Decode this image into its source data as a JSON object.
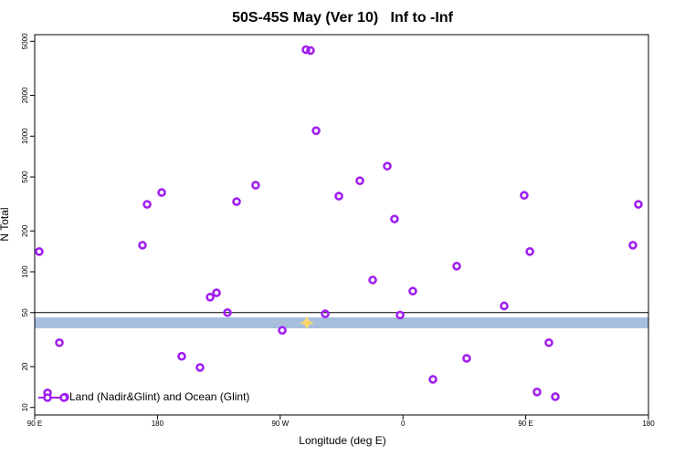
{
  "chart_data": {
    "type": "scatter",
    "title": "50S-45S May (Ver 10)   Inf to -Inf",
    "x_label": "Longitude (deg E)",
    "y_label": "N Total",
    "log_y": true,
    "legend": "bottom-left",
    "reference_line": 50,
    "xlim": [
      90,
      540
    ],
    "ylim": [
      8.8,
      5600
    ],
    "xticks": [
      {
        "value": 90,
        "label": "90 E"
      },
      {
        "value": 180,
        "label": "180"
      },
      {
        "value": 270,
        "label": "90 W"
      },
      {
        "value": 360,
        "label": "0"
      },
      {
        "value": 450,
        "label": "90 E"
      },
      {
        "value": 540,
        "label": "180"
      }
    ],
    "yticks": [
      10,
      20,
      50,
      100,
      200,
      500,
      1000,
      2000,
      5000
    ],
    "series": [
      {
        "name": "Land (Nadir&Glint) and Ocean (Glint)",
        "color": "#a020f0",
        "x": [
          93.3,
          99.4,
          108.1,
          112.1,
          169,
          172.4,
          183.1,
          197.8,
          211.2,
          218.6,
          223.3,
          231.3,
          238,
          252,
          271.5,
          288.9,
          292.2,
          296.3,
          303,
          313,
          328.4,
          337.8,
          348.5,
          353.8,
          357.9,
          367.2,
          382,
          399.4,
          406.7,
          434.2,
          448.9,
          453,
          458.3,
          467,
          471.7,
          528.6,
          532.6
        ],
        "values": [
          141,
          12.8,
          30,
          11.9,
          157,
          314,
          384,
          23.8,
          19.7,
          65,
          70,
          50,
          329,
          435,
          37,
          4340,
          4280,
          1097,
          49,
          361,
          469,
          87,
          601,
          245,
          48,
          72,
          16.1,
          110,
          23,
          56,
          366,
          141,
          13,
          30,
          12,
          157,
          314
        ]
      }
    ]
  }
}
